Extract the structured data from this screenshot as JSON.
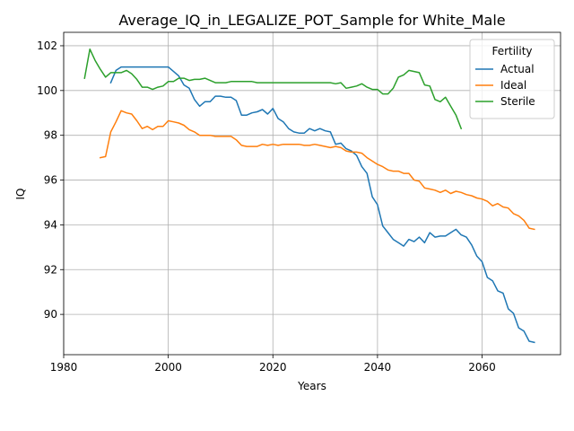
{
  "chart_data": {
    "type": "line",
    "title": "Average_IQ_in_LEGALIZE_POT_Sample for White_Male",
    "xlabel": "Years",
    "ylabel": "IQ",
    "xlim": [
      1980,
      2075
    ],
    "ylim": [
      88.2,
      102.6
    ],
    "xticks": [
      1980,
      2000,
      2020,
      2040,
      2060
    ],
    "yticks": [
      90,
      92,
      94,
      96,
      98,
      100,
      102
    ],
    "grid": true,
    "legend": {
      "title": "Fertility",
      "placement": "top-right",
      "entries": [
        "Actual",
        "Ideal",
        "Sterile"
      ]
    },
    "series": [
      {
        "name": "Actual",
        "color": "#1f77b4",
        "x": [
          1989,
          1990,
          1991,
          1992,
          1993,
          1994,
          1995,
          1996,
          1997,
          1998,
          1999,
          2000,
          2001,
          2002,
          2003,
          2004,
          2005,
          2006,
          2007,
          2008,
          2009,
          2010,
          2011,
          2012,
          2013,
          2014,
          2015,
          2016,
          2017,
          2018,
          2019,
          2020,
          2021,
          2022,
          2023,
          2024,
          2025,
          2026,
          2027,
          2028,
          2029,
          2030,
          2031,
          2032,
          2033,
          2034,
          2035,
          2036,
          2037,
          2038,
          2039,
          2040,
          2041,
          2042,
          2043,
          2044,
          2045,
          2046,
          2047,
          2048,
          2049,
          2050,
          2051,
          2052,
          2053,
          2054,
          2055,
          2056,
          2057,
          2058,
          2059,
          2060,
          2061,
          2062,
          2063,
          2064,
          2065,
          2066,
          2067,
          2068,
          2069,
          2070
        ],
        "y": [
          100.35,
          100.9,
          101.05,
          101.05,
          101.05,
          101.05,
          101.05,
          101.05,
          101.05,
          101.05,
          101.05,
          101.05,
          100.85,
          100.65,
          100.25,
          100.1,
          99.6,
          99.3,
          99.5,
          99.5,
          99.75,
          99.75,
          99.7,
          99.7,
          99.55,
          98.9,
          98.9,
          99.0,
          99.05,
          99.15,
          98.95,
          99.2,
          98.75,
          98.6,
          98.3,
          98.15,
          98.1,
          98.1,
          98.3,
          98.2,
          98.3,
          98.2,
          98.15,
          97.6,
          97.65,
          97.4,
          97.3,
          97.1,
          96.6,
          96.3,
          95.25,
          94.9,
          93.95,
          93.65,
          93.35,
          93.2,
          93.05,
          93.35,
          93.25,
          93.45,
          93.2,
          93.65,
          93.45,
          93.5,
          93.5,
          93.65,
          93.8,
          93.55,
          93.45,
          93.1,
          92.6,
          92.35,
          91.65,
          91.5,
          91.05,
          90.95,
          90.25,
          90.05,
          89.4,
          89.25,
          88.8,
          88.75
        ]
      },
      {
        "name": "Ideal",
        "color": "#ff7f0e",
        "x": [
          1987,
          1988,
          1989,
          1990,
          1991,
          1992,
          1993,
          1994,
          1995,
          1996,
          1997,
          1998,
          1999,
          2000,
          2001,
          2002,
          2003,
          2004,
          2005,
          2006,
          2007,
          2008,
          2009,
          2010,
          2011,
          2012,
          2013,
          2014,
          2015,
          2016,
          2017,
          2018,
          2019,
          2020,
          2021,
          2022,
          2023,
          2024,
          2025,
          2026,
          2027,
          2028,
          2029,
          2030,
          2031,
          2032,
          2033,
          2034,
          2035,
          2036,
          2037,
          2038,
          2039,
          2040,
          2041,
          2042,
          2043,
          2044,
          2045,
          2046,
          2047,
          2048,
          2049,
          2050,
          2051,
          2052,
          2053,
          2054,
          2055,
          2056,
          2057,
          2058,
          2059,
          2060,
          2061,
          2062,
          2063,
          2064,
          2065,
          2066,
          2067,
          2068,
          2069,
          2070
        ],
        "y": [
          97.0,
          97.05,
          98.15,
          98.6,
          99.1,
          99.0,
          98.95,
          98.65,
          98.3,
          98.4,
          98.25,
          98.4,
          98.4,
          98.65,
          98.6,
          98.55,
          98.45,
          98.25,
          98.15,
          98.0,
          98.0,
          98.0,
          97.95,
          97.95,
          97.95,
          97.95,
          97.8,
          97.55,
          97.5,
          97.5,
          97.5,
          97.6,
          97.55,
          97.6,
          97.55,
          97.6,
          97.6,
          97.6,
          97.6,
          97.55,
          97.55,
          97.6,
          97.55,
          97.5,
          97.45,
          97.5,
          97.45,
          97.3,
          97.25,
          97.25,
          97.2,
          97.0,
          96.85,
          96.7,
          96.6,
          96.45,
          96.4,
          96.4,
          96.3,
          96.3,
          96.0,
          95.95,
          95.65,
          95.6,
          95.55,
          95.45,
          95.55,
          95.4,
          95.5,
          95.45,
          95.35,
          95.3,
          95.2,
          95.15,
          95.05,
          94.85,
          94.95,
          94.8,
          94.75,
          94.5,
          94.4,
          94.2,
          93.85,
          93.8
        ]
      },
      {
        "name": "Sterile",
        "color": "#2ca02c",
        "x": [
          1984,
          1985,
          1986,
          1987,
          1988,
          1989,
          1990,
          1991,
          1992,
          1993,
          1994,
          1995,
          1996,
          1997,
          1998,
          1999,
          2000,
          2001,
          2002,
          2003,
          2004,
          2005,
          2006,
          2007,
          2008,
          2009,
          2010,
          2011,
          2012,
          2013,
          2014,
          2015,
          2016,
          2017,
          2018,
          2019,
          2020,
          2021,
          2022,
          2023,
          2024,
          2025,
          2026,
          2027,
          2028,
          2029,
          2030,
          2031,
          2032,
          2033,
          2034,
          2035,
          2036,
          2037,
          2038,
          2039,
          2040,
          2041,
          2042,
          2043,
          2044,
          2045,
          2046,
          2047,
          2048,
          2049,
          2050,
          2051,
          2052,
          2053,
          2054,
          2055,
          2056
        ],
        "y": [
          100.55,
          101.85,
          101.35,
          100.95,
          100.6,
          100.8,
          100.8,
          100.8,
          100.9,
          100.75,
          100.5,
          100.15,
          100.15,
          100.05,
          100.15,
          100.2,
          100.4,
          100.4,
          100.55,
          100.55,
          100.45,
          100.5,
          100.5,
          100.55,
          100.45,
          100.35,
          100.35,
          100.35,
          100.4,
          100.4,
          100.4,
          100.4,
          100.4,
          100.35,
          100.35,
          100.35,
          100.35,
          100.35,
          100.35,
          100.35,
          100.35,
          100.35,
          100.35,
          100.35,
          100.35,
          100.35,
          100.35,
          100.35,
          100.3,
          100.35,
          100.1,
          100.15,
          100.2,
          100.3,
          100.15,
          100.05,
          100.05,
          99.85,
          99.85,
          100.1,
          100.6,
          100.7,
          100.9,
          100.85,
          100.8,
          100.25,
          100.2,
          99.6,
          99.5,
          99.7,
          99.3,
          98.9,
          98.3
        ]
      }
    ]
  }
}
